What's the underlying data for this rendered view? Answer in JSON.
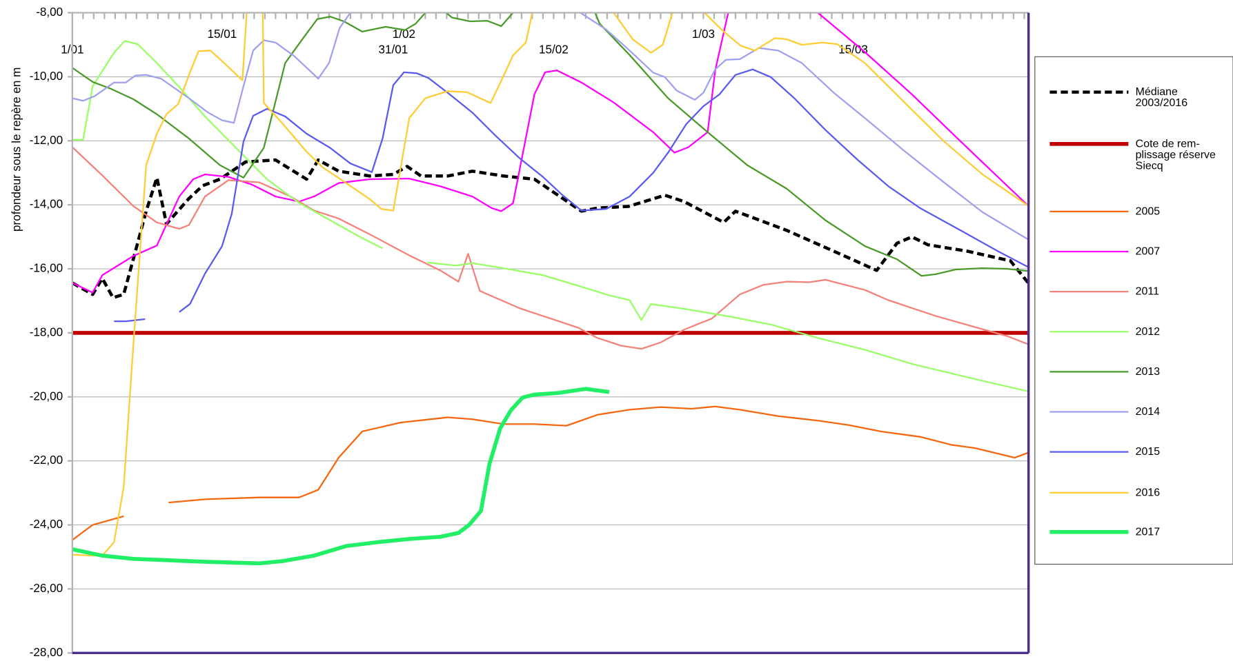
{
  "chart_data": {
    "type": "line",
    "y_label": "profondeur sous le repère en m",
    "xlim": [
      0,
      89.4
    ],
    "xticks": [
      {
        "value": 0,
        "label": "1/01"
      },
      {
        "value": 14,
        "label": "15/01"
      },
      {
        "value": 30,
        "label": "31/01"
      },
      {
        "value": 31,
        "label": "1/02"
      },
      {
        "value": 45,
        "label": "15/02"
      },
      {
        "value": 59,
        "label": "1/03"
      },
      {
        "value": 73,
        "label": "15/03"
      }
    ],
    "ylim": [
      -28,
      -8
    ],
    "yticks": [
      {
        "value": -8,
        "label": "-8,00"
      },
      {
        "value": -10,
        "label": "-10,00"
      },
      {
        "value": -12,
        "label": "-12,00"
      },
      {
        "value": -14,
        "label": "-14,00"
      },
      {
        "value": -16,
        "label": "-16,00"
      },
      {
        "value": -18,
        "label": "-18,00"
      },
      {
        "value": -20,
        "label": "-20,00"
      },
      {
        "value": -22,
        "label": "-22,00"
      },
      {
        "value": -24,
        "label": "-24,00"
      },
      {
        "value": -26,
        "label": "-26,00"
      },
      {
        "value": -28,
        "label": "-28,00"
      }
    ],
    "grid": true,
    "legend": "right",
    "series": [
      {
        "name": "Médiane\n2003/2016",
        "color": "#000000",
        "line_width": 4,
        "dashed": true,
        "x": [
          0,
          1.9,
          2.8,
          3.8,
          4.8,
          5.7,
          6.9,
          7.9,
          8.8,
          10.9,
          12.2,
          13.8,
          16.2,
          19,
          21.9,
          23,
          24.9,
          27.8,
          30,
          31.3,
          32.6,
          35.1,
          37.4,
          40.3,
          43.2,
          47.6,
          49.1,
          52,
          55.4,
          57.2,
          60.9,
          62,
          66.8,
          71.2,
          75.2,
          77.1,
          78.5,
          80,
          83.7,
          87.7,
          89.4
        ],
        "values": [
          -16.44,
          -16.8,
          -16.3,
          -16.9,
          -16.8,
          -15.7,
          -14.2,
          -13.15,
          -14.6,
          -13.8,
          -13.4,
          -13.2,
          -12.66,
          -12.6,
          -13.2,
          -12.6,
          -12.95,
          -13.1,
          -13.05,
          -12.8,
          -13.1,
          -13.1,
          -12.95,
          -13.1,
          -13.2,
          -14.2,
          -14.1,
          -14.05,
          -13.7,
          -13.9,
          -14.55,
          -14.2,
          -14.8,
          -15.45,
          -16.05,
          -15.2,
          -15.0,
          -15.25,
          -15.45,
          -15.75,
          -16.45
        ]
      },
      {
        "name": "Cote de rem-\nplissage réserve\nSiecq",
        "color": "#c00000",
        "line_width": 5,
        "dashed": false,
        "x": [
          0,
          89.4
        ],
        "values": [
          -18,
          -18
        ]
      },
      {
        "name": "2005",
        "color": "#f5670f",
        "line_width": 2,
        "dashed": false,
        "x": [
          0,
          1.9,
          4.8,
          7,
          9,
          12.4,
          17.5,
          21.2,
          23,
          24.9,
          27.1,
          30.7,
          35.1,
          37.4,
          40.3,
          43.2,
          46.2,
          49.1,
          52.1,
          55,
          57.9,
          60.1,
          62.4,
          66,
          69.7,
          72.6,
          75.6,
          79.3,
          82.2,
          84.4,
          88.1,
          89.4
        ],
        "values": [
          -24.47,
          -24.0,
          -23.73,
          null,
          -23.3,
          -23.2,
          -23.14,
          -23.14,
          -22.9,
          -21.9,
          -21.08,
          -20.8,
          -20.64,
          -20.7,
          -20.85,
          -20.85,
          -20.9,
          -20.56,
          -20.4,
          -20.32,
          -20.37,
          -20.3,
          -20.4,
          -20.6,
          -20.74,
          -20.88,
          -21.08,
          -21.25,
          -21.5,
          -21.6,
          -21.9,
          -21.74
        ]
      },
      {
        "name": "2007",
        "color": "#ff00ff",
        "line_width": 2,
        "dashed": false,
        "x": [
          0,
          1.9,
          2.8,
          5.7,
          7.9,
          10,
          11.3,
          12.4,
          14.6,
          16.8,
          19,
          21.2,
          22.6,
          24.9,
          27.8,
          31.5,
          34.4,
          37.4,
          39.2,
          40.1,
          41.2,
          43.2,
          44.2,
          45.3,
          47.6,
          50.6,
          54.3,
          56.3,
          57.6,
          59.4,
          60.1,
          62,
          68.5,
          69.7,
          74.1,
          78.5,
          82.9,
          86.6,
          89.4
        ],
        "values": [
          -16.44,
          -16.74,
          -16.2,
          -15.6,
          -15.27,
          -13.74,
          -13.2,
          -13.05,
          -13.13,
          -13.37,
          -13.74,
          -13.9,
          -13.74,
          -13.32,
          -13.2,
          -13.18,
          -13.42,
          -13.74,
          -14.1,
          -14.2,
          -13.95,
          -10.55,
          -9.86,
          -9.8,
          -10.18,
          -10.8,
          -11.73,
          -12.37,
          -12.2,
          -11.73,
          -9.8,
          -7.0,
          -7.6,
          -8.0,
          -9.23,
          -10.55,
          -11.97,
          -13.15,
          -14.04
        ]
      },
      {
        "name": "2011",
        "color": "#f5827a",
        "line_width": 2,
        "dashed": false,
        "x": [
          0,
          2.8,
          5.7,
          7.9,
          10,
          10.9,
          12.4,
          14.6,
          17.5,
          20.4,
          22.6,
          24.9,
          27.8,
          31.5,
          34.4,
          36.1,
          37,
          38.1,
          41.8,
          44.7,
          47.3,
          49.1,
          51.3,
          53.2,
          55,
          57.2,
          59.8,
          62.4,
          64.6,
          66.8,
          68.9,
          70.4,
          74.1,
          76.3,
          80.7,
          84.4,
          87.4,
          89.4
        ],
        "values": [
          -12.2,
          -13.08,
          -14.04,
          -14.55,
          -14.75,
          -14.63,
          -13.74,
          -13.23,
          -13.3,
          -13.74,
          -14.18,
          -14.43,
          -14.92,
          -15.58,
          -16.05,
          -16.4,
          -15.53,
          -16.69,
          -17.23,
          -17.55,
          -17.84,
          -18.16,
          -18.4,
          -18.5,
          -18.3,
          -17.9,
          -17.55,
          -16.8,
          -16.5,
          -16.4,
          -16.42,
          -16.34,
          -16.66,
          -16.98,
          -17.47,
          -17.82,
          -18.1,
          -18.36
        ]
      },
      {
        "name": "2012",
        "color": "#99ff66",
        "line_width": 2,
        "dashed": false,
        "x": [
          0,
          1,
          1.9,
          3.9,
          4.9,
          6.1,
          7.9,
          10.1,
          12.4,
          15.3,
          18.2,
          21.2,
          24.1,
          27.1,
          29,
          32,
          33.2,
          35.9,
          37.4,
          40.3,
          44,
          47.6,
          50.2,
          52.1,
          53.2,
          54.1,
          57.2,
          61.6,
          65.3,
          69.7,
          74.1,
          78.5,
          83.7,
          89.4
        ],
        "values": [
          -11.97,
          -11.97,
          -10.3,
          -9.25,
          -8.88,
          -8.98,
          -9.57,
          -10.36,
          -11.24,
          -12.22,
          -13.2,
          -13.94,
          -14.48,
          -15.04,
          -15.36,
          null,
          -15.8,
          -15.9,
          -15.82,
          -15.98,
          -16.2,
          -16.56,
          -16.83,
          -16.98,
          -17.6,
          -17.1,
          -17.25,
          -17.5,
          -17.74,
          -18.16,
          -18.53,
          -18.97,
          -19.39,
          -19.83
        ]
      },
      {
        "name": "2013",
        "color": "#4a9a2a",
        "line_width": 2,
        "dashed": false,
        "x": [
          0,
          1.9,
          3.5,
          5.7,
          7.9,
          10.9,
          13.8,
          16,
          17.9,
          19.9,
          21.5,
          22.9,
          24.1,
          25.4,
          27.1,
          29.3,
          31.1,
          32.1,
          33,
          34.2,
          35.5,
          37.2,
          38.8,
          40.1,
          41.2,
          42,
          48.5,
          49.3,
          52.1,
          55.7,
          59.4,
          63.1,
          66.8,
          70.4,
          74.1,
          77.1,
          79.4,
          80.7,
          82.6,
          85.1,
          87.4,
          89.4
        ],
        "values": [
          -9.72,
          -10.16,
          -10.36,
          -10.7,
          -11.17,
          -11.93,
          -12.76,
          -13.15,
          -12.22,
          -9.57,
          -8.83,
          -8.2,
          -8.12,
          -8.27,
          -8.59,
          -8.44,
          -8.54,
          -8.34,
          -8.0,
          -7.8,
          -8.15,
          -8.27,
          -8.25,
          -8.42,
          -8.0,
          -7.6,
          -7.7,
          -8.34,
          -9.32,
          -10.67,
          -11.73,
          -12.76,
          -13.5,
          -14.48,
          -15.29,
          -15.7,
          -16.22,
          -16.17,
          -16.02,
          -15.98,
          -16.0,
          -16.07
        ]
      },
      {
        "name": "2014",
        "color": "#a0a0f0",
        "line_width": 2,
        "dashed": false,
        "x": [
          0,
          1,
          2.1,
          3.9,
          5,
          5.9,
          6.9,
          8.3,
          10.9,
          12.7,
          14,
          15.1,
          16,
          16.9,
          17.9,
          19,
          20.8,
          23,
          24,
          25,
          26,
          27,
          46.5,
          47.5,
          49.9,
          52.1,
          54.3,
          55.4,
          56.5,
          58.2,
          59,
          60.1,
          61.1,
          62.4,
          64.2,
          66,
          68.2,
          71.2,
          74.1,
          77.8,
          81.5,
          85.1,
          89.4
        ],
        "values": [
          -10.67,
          -10.75,
          -10.6,
          -10.18,
          -10.18,
          -9.96,
          -9.94,
          -10.06,
          -10.67,
          -11.12,
          -11.36,
          -11.44,
          -10.3,
          -9.18,
          -8.86,
          -8.93,
          -9.37,
          -10.06,
          -9.57,
          -8.47,
          -8.0,
          -7.6,
          -7.6,
          -8.0,
          -8.52,
          -9.18,
          -9.87,
          -10.01,
          -10.43,
          -10.72,
          -10.5,
          -9.77,
          -9.47,
          -9.45,
          -9.1,
          -9.18,
          -9.57,
          -10.5,
          -11.29,
          -12.32,
          -13.3,
          -14.23,
          -15.09
        ]
      },
      {
        "name": "2015",
        "color": "#5a5af0",
        "line_width": 2,
        "dashed": false,
        "x": [
          3.9,
          5,
          6.8,
          8,
          10,
          11,
          12.4,
          14,
          14.9,
          16,
          16.9,
          18.2,
          19.9,
          21.9,
          24.1,
          26,
          28,
          29,
          30,
          31,
          32.2,
          33.3,
          35.1,
          37.4,
          39.6,
          41.8,
          44,
          45.8,
          47.6,
          49.9,
          52.1,
          54.3,
          55.7,
          57.4,
          59,
          60.5,
          62,
          63.6,
          65.3,
          67.5,
          70.4,
          73.4,
          76.3,
          79.3,
          82.9,
          86.6,
          89.4
        ],
        "values": [
          -17.64,
          -17.64,
          -17.57,
          null,
          -17.35,
          -17.1,
          -16.15,
          -15.29,
          -14.28,
          -12.03,
          -11.22,
          -11.0,
          -11.24,
          -11.78,
          -12.22,
          -12.71,
          -12.98,
          -11.93,
          -10.26,
          -9.86,
          -9.89,
          -10.04,
          -10.5,
          -11.12,
          -11.85,
          -12.54,
          -13.13,
          -13.69,
          -14.18,
          -14.13,
          -13.74,
          -13.0,
          -12.37,
          -11.48,
          -10.92,
          -10.55,
          -9.94,
          -9.77,
          -10.01,
          -10.67,
          -11.66,
          -12.59,
          -13.42,
          -14.11,
          -14.77,
          -15.46,
          -15.95
        ]
      },
      {
        "name": "2016",
        "color": "#ffcc33",
        "line_width": 2,
        "dashed": false,
        "x": [
          0,
          1.9,
          2.8,
          3.9,
          4.8,
          5.7,
          6.9,
          7.9,
          8.8,
          9.9,
          11,
          11.8,
          12.9,
          14.2,
          15.9,
          16.3,
          16.6,
          17.5,
          17.8,
          17.9,
          19.7,
          21.9,
          23.4,
          25.6,
          27.8,
          28.9,
          30,
          31.5,
          33,
          35.1,
          36.9,
          39.1,
          40.1,
          41.2,
          42.4,
          43,
          43.5,
          50.1,
          50.6,
          52.4,
          54.1,
          55.2,
          56.1,
          56.6,
          58.6,
          59.1,
          60.9,
          62.5,
          63.8,
          65.7,
          66.8,
          68.2,
          70.1,
          71.5,
          74.1,
          77.8,
          81.5,
          85.1,
          89.4
        ],
        "values": [
          -24.93,
          -24.96,
          -24.96,
          -24.54,
          -22.82,
          -18.4,
          -12.76,
          -11.78,
          -11.17,
          -10.85,
          -9.86,
          -9.2,
          -9.18,
          -9.57,
          -10.11,
          -8.0,
          -7.5,
          -7.5,
          -8.0,
          -10.82,
          -11.48,
          -12.34,
          -12.83,
          -13.32,
          -13.82,
          -14.13,
          -14.18,
          -11.29,
          -10.67,
          -10.45,
          -10.48,
          -10.82,
          -10.13,
          -9.33,
          -8.93,
          -8.0,
          -7.5,
          -7.5,
          -8.0,
          -8.83,
          -9.25,
          -9.0,
          -8.0,
          -7.5,
          -7.5,
          -8.0,
          -8.59,
          -9.03,
          -9.18,
          -8.79,
          -8.83,
          -9.0,
          -8.93,
          -8.98,
          -9.57,
          -10.8,
          -12.02,
          -13.05,
          -14.04
        ]
      },
      {
        "name": "2017",
        "color": "#22ee66",
        "line_width": 5,
        "dashed": false,
        "x": [
          0,
          2.8,
          5.7,
          8.7,
          12.4,
          15.3,
          17.5,
          19.7,
          22.6,
          25.6,
          28.5,
          31.5,
          34.4,
          36.1,
          37.1,
          38.2,
          39,
          40,
          41,
          42.1,
          43.2,
          45.4,
          48,
          50.2
        ],
        "values": [
          -24.76,
          -24.96,
          -25.06,
          -25.1,
          -25.15,
          -25.18,
          -25.2,
          -25.13,
          -24.96,
          -24.66,
          -24.54,
          -24.44,
          -24.37,
          -24.25,
          -24.0,
          -23.56,
          -22.09,
          -20.98,
          -20.42,
          -20.02,
          -19.93,
          -19.88,
          -19.75,
          -19.85
        ]
      }
    ]
  }
}
